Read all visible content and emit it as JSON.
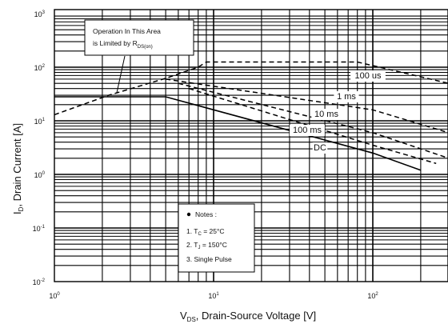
{
  "chart_data": {
    "type": "line",
    "title": "",
    "xlabel": "V",
    "xlabel_sub": "DS",
    "xlabel_rest": ", Drain-Source Voltage [V]",
    "ylabel": "I",
    "ylabel_sub": "D",
    "ylabel_rest": ", Drain Current [A]",
    "x_scale": "log",
    "y_scale": "log",
    "xlim": [
      1,
      500
    ],
    "ylim": [
      0.01,
      1000
    ],
    "grid": true,
    "x_ticks": [
      {
        "v": 1,
        "base": "10",
        "exp": "0"
      },
      {
        "v": 10,
        "base": "10",
        "exp": "1"
      },
      {
        "v": 100,
        "base": "10",
        "exp": "2"
      }
    ],
    "y_ticks": [
      {
        "v": 1000,
        "base": "10",
        "exp": "3"
      },
      {
        "v": 100,
        "base": "10",
        "exp": "2"
      },
      {
        "v": 10,
        "base": "10",
        "exp": "1"
      },
      {
        "v": 1,
        "base": "10",
        "exp": "0"
      },
      {
        "v": 0.1,
        "base": "10",
        "exp": "-1"
      },
      {
        "v": 0.01,
        "base": "10",
        "exp": "-2"
      }
    ],
    "series": [
      {
        "name": "100 us",
        "style": "dashed",
        "points": [
          [
            1,
            13
          ],
          [
            2.2,
            30
          ],
          [
            5,
            62
          ],
          [
            8,
            100
          ],
          [
            9,
            125
          ],
          [
            80,
            125
          ],
          [
            300,
            50
          ]
        ]
      },
      {
        "name": "1 ms",
        "style": "dashed",
        "points": [
          [
            5,
            60
          ],
          [
            100,
            16
          ],
          [
            300,
            6
          ]
        ]
      },
      {
        "name": "10 ms",
        "style": "dashed",
        "points": [
          [
            6,
            50
          ],
          [
            100,
            6
          ],
          [
            300,
            2
          ]
        ]
      },
      {
        "name": "100 ms",
        "style": "dashed",
        "points": [
          [
            7,
            40
          ],
          [
            100,
            3.5
          ],
          [
            250,
            1.6
          ]
        ]
      },
      {
        "name": "DC",
        "style": "solid",
        "points": [
          [
            1,
            28
          ],
          [
            5,
            28
          ],
          [
            100,
            2.5
          ],
          [
            200,
            1.2
          ]
        ]
      }
    ],
    "annotations": {
      "area_line1": "Operation In This Area",
      "area_line2": "is Limited by R",
      "area_sub": "DS(on)",
      "notes_title": "Notes :",
      "note1_pre": "1. T",
      "note1_sub": "C",
      "note1_post": " = 25°C",
      "note2_pre": "2. T",
      "note2_sub": "J",
      "note2_post": " = 150°C",
      "note3": "3. Single Pulse"
    }
  }
}
